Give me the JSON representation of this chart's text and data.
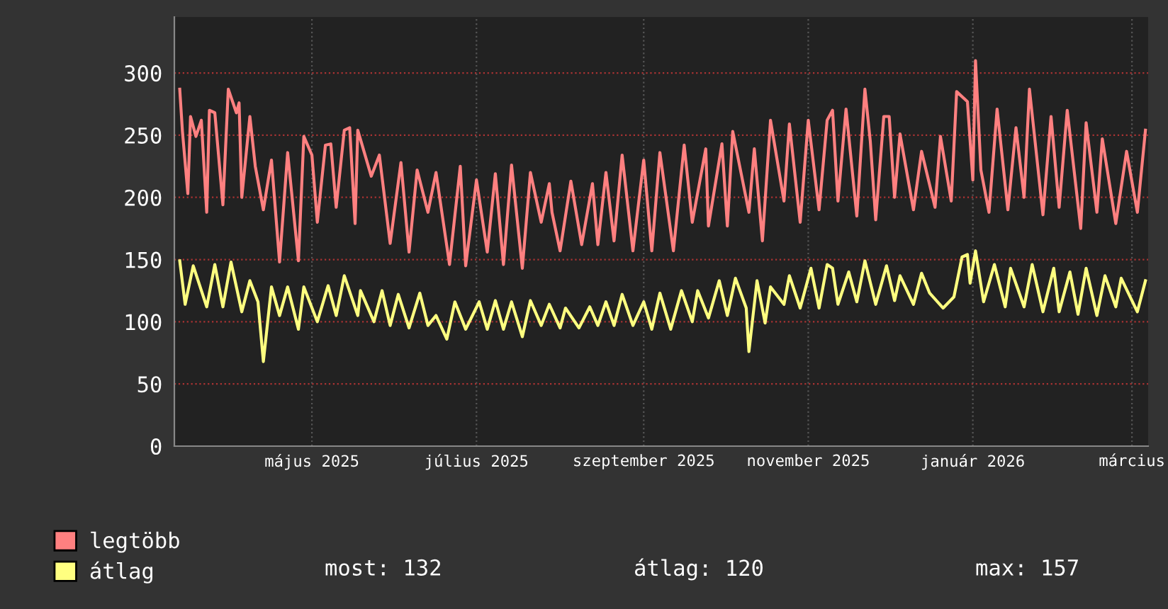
{
  "chart_data": {
    "type": "line",
    "xlim": [
      "2025-03-11",
      "2026-03-07"
    ],
    "xticks": [
      {
        "value": "2025-05-01",
        "label": "május 2025"
      },
      {
        "value": "2025-07-01",
        "label": "július 2025"
      },
      {
        "value": "2025-09-01",
        "label": "szeptember 2025"
      },
      {
        "value": "2025-11-01",
        "label": "november 2025"
      },
      {
        "value": "2026-01-01",
        "label": "január 2026"
      },
      {
        "value": "2026-03-01",
        "label": "március"
      }
    ],
    "ylim": [
      0,
      345
    ],
    "yticks": [
      0,
      50,
      100,
      150,
      200,
      250,
      300
    ],
    "grid": true,
    "legend": "bottom left",
    "marker": "none",
    "line_style": "solid",
    "annotations": [
      "most: 132",
      "átlag: 120",
      "max: 157"
    ],
    "series": [
      {
        "name": "legtöbb",
        "color": "#ff8080",
        "x": [
          "2025-03-13",
          "2025-03-14",
          "2025-03-16",
          "2025-03-17",
          "2025-03-19",
          "2025-03-21",
          "2025-03-23",
          "2025-03-24",
          "2025-03-26",
          "2025-03-29",
          "2025-03-31",
          "2025-04-03",
          "2025-04-04",
          "2025-04-05",
          "2025-04-08",
          "2025-04-10",
          "2025-04-13",
          "2025-04-16",
          "2025-04-19",
          "2025-04-22",
          "2025-04-26",
          "2025-04-28",
          "2025-05-01",
          "2025-05-03",
          "2025-05-06",
          "2025-05-08",
          "2025-05-10",
          "2025-05-13",
          "2025-05-15",
          "2025-05-17",
          "2025-05-18",
          "2025-05-23",
          "2025-05-26",
          "2025-05-30",
          "2025-06-03",
          "2025-06-06",
          "2025-06-09",
          "2025-06-13",
          "2025-06-16",
          "2025-06-21",
          "2025-06-25",
          "2025-06-27",
          "2025-07-01",
          "2025-07-05",
          "2025-07-08",
          "2025-07-11",
          "2025-07-14",
          "2025-07-18",
          "2025-07-21",
          "2025-07-25",
          "2025-07-28",
          "2025-07-29",
          "2025-08-01",
          "2025-08-05",
          "2025-08-09",
          "2025-08-13",
          "2025-08-15",
          "2025-08-18",
          "2025-08-21",
          "2025-08-24",
          "2025-08-28",
          "2025-09-01",
          "2025-09-04",
          "2025-09-07",
          "2025-09-12",
          "2025-09-16",
          "2025-09-19",
          "2025-09-24",
          "2025-09-25",
          "2025-09-30",
          "2025-10-02",
          "2025-10-04",
          "2025-10-10",
          "2025-10-12",
          "2025-10-15",
          "2025-10-18",
          "2025-10-23",
          "2025-10-25",
          "2025-10-29",
          "2025-11-01",
          "2025-11-05",
          "2025-11-08",
          "2025-11-10",
          "2025-11-12",
          "2025-11-15",
          "2025-11-19",
          "2025-11-22",
          "2025-11-24",
          "2025-11-26",
          "2025-11-29",
          "2025-12-01",
          "2025-12-03",
          "2025-12-05",
          "2025-12-10",
          "2025-12-13",
          "2025-12-18",
          "2025-12-20",
          "2025-12-24",
          "2025-12-26",
          "2025-12-30",
          "2026-01-01",
          "2026-01-02",
          "2026-01-04",
          "2026-01-07",
          "2026-01-10",
          "2026-01-14",
          "2026-01-17",
          "2026-01-20",
          "2026-01-22",
          "2026-01-27",
          "2026-01-30",
          "2026-02-02",
          "2026-02-05",
          "2026-02-10",
          "2026-02-12",
          "2026-02-16",
          "2026-02-18",
          "2026-02-23",
          "2026-02-27",
          "2026-03-03",
          "2026-03-06"
        ],
        "values": [
          287,
          253,
          203,
          265,
          249,
          262,
          188,
          270,
          268,
          194,
          287,
          268,
          276,
          200,
          265,
          225,
          190,
          230,
          148,
          236,
          149,
          249,
          234,
          180,
          242,
          243,
          192,
          254,
          256,
          179,
          254,
          217,
          234,
          163,
          228,
          156,
          222,
          188,
          220,
          146,
          225,
          145,
          214,
          156,
          219,
          146,
          226,
          143,
          220,
          180,
          211,
          188,
          157,
          213,
          162,
          211,
          162,
          220,
          165,
          234,
          157,
          230,
          157,
          236,
          157,
          242,
          180,
          239,
          177,
          243,
          177,
          253,
          188,
          239,
          165,
          262,
          197,
          259,
          180,
          262,
          190,
          262,
          270,
          197,
          271,
          185,
          287,
          245,
          182,
          265,
          265,
          200,
          251,
          190,
          237,
          192,
          249,
          197,
          285,
          277,
          214,
          310,
          222,
          188,
          271,
          190,
          256,
          200,
          287,
          186,
          265,
          192,
          270,
          175,
          260,
          188,
          247,
          179,
          237,
          188,
          254
        ]
      },
      {
        "name": "átlag",
        "color": "#ffff80",
        "x": [
          "2025-03-13",
          "2025-03-15",
          "2025-03-18",
          "2025-03-23",
          "2025-03-26",
          "2025-03-29",
          "2025-04-01",
          "2025-04-05",
          "2025-04-08",
          "2025-04-11",
          "2025-04-13",
          "2025-04-16",
          "2025-04-19",
          "2025-04-22",
          "2025-04-26",
          "2025-04-28",
          "2025-05-03",
          "2025-05-07",
          "2025-05-10",
          "2025-05-13",
          "2025-05-18",
          "2025-05-19",
          "2025-05-24",
          "2025-05-27",
          "2025-05-30",
          "2025-06-02",
          "2025-06-06",
          "2025-06-10",
          "2025-06-13",
          "2025-06-16",
          "2025-06-20",
          "2025-06-23",
          "2025-06-27",
          "2025-07-02",
          "2025-07-05",
          "2025-07-08",
          "2025-07-11",
          "2025-07-14",
          "2025-07-18",
          "2025-07-21",
          "2025-07-25",
          "2025-07-28",
          "2025-08-01",
          "2025-08-03",
          "2025-08-08",
          "2025-08-12",
          "2025-08-15",
          "2025-08-18",
          "2025-08-21",
          "2025-08-24",
          "2025-08-28",
          "2025-09-01",
          "2025-09-04",
          "2025-09-07",
          "2025-09-11",
          "2025-09-15",
          "2025-09-19",
          "2025-09-21",
          "2025-09-25",
          "2025-09-29",
          "2025-10-02",
          "2025-10-05",
          "2025-10-09",
          "2025-10-10",
          "2025-10-13",
          "2025-10-16",
          "2025-10-18",
          "2025-10-23",
          "2025-10-25",
          "2025-10-29",
          "2025-11-02",
          "2025-11-05",
          "2025-11-08",
          "2025-11-10",
          "2025-11-12",
          "2025-11-16",
          "2025-11-19",
          "2025-11-22",
          "2025-11-26",
          "2025-11-30",
          "2025-12-03",
          "2025-12-05",
          "2025-12-10",
          "2025-12-13",
          "2025-12-16",
          "2025-12-21",
          "2025-12-25",
          "2025-12-28",
          "2025-12-30",
          "2025-12-31",
          "2026-01-02",
          "2026-01-05",
          "2026-01-09",
          "2026-01-13",
          "2026-01-15",
          "2026-01-20",
          "2026-01-23",
          "2026-01-27",
          "2026-01-31",
          "2026-02-02",
          "2026-02-06",
          "2026-02-09",
          "2026-02-12",
          "2026-02-16",
          "2026-02-19",
          "2026-02-23",
          "2026-02-25",
          "2026-03-03",
          "2026-03-06"
        ],
        "values": [
          149,
          114,
          145,
          112,
          146,
          112,
          148,
          108,
          133,
          116,
          68,
          128,
          105,
          128,
          94,
          128,
          100,
          129,
          105,
          137,
          105,
          125,
          100,
          125,
          97,
          122,
          95,
          123,
          97,
          105,
          86,
          116,
          94,
          116,
          94,
          117,
          94,
          116,
          88,
          117,
          97,
          114,
          95,
          111,
          95,
          112,
          97,
          116,
          97,
          122,
          97,
          116,
          94,
          123,
          94,
          125,
          100,
          125,
          103,
          133,
          105,
          135,
          111,
          76,
          133,
          99,
          128,
          114,
          137,
          111,
          143,
          111,
          146,
          143,
          114,
          140,
          116,
          149,
          114,
          145,
          117,
          137,
          114,
          139,
          123,
          111,
          120,
          152,
          154,
          131,
          157,
          116,
          146,
          112,
          143,
          112,
          146,
          108,
          143,
          108,
          140,
          106,
          143,
          105,
          137,
          112,
          135,
          108,
          133
        ]
      }
    ]
  }
}
